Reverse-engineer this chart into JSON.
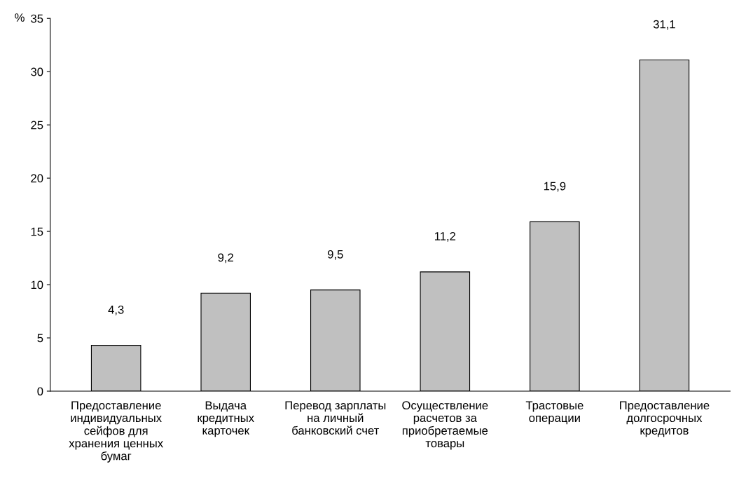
{
  "chart_data": {
    "type": "bar",
    "ylabel": "%",
    "categories": [
      "Предоставление\nиндивидуальных\nсейфов для\nхранения ценных\nбумаг",
      "Выдача\nкредитных\nкарточек",
      "Перевод зарплаты\nна личный\nбанковский счет",
      "Осуществление\nрасчетов за\nприобретаемые\nтовары",
      "Трастовые\nоперации",
      "Предоставление\nдолгосрочных\nкредитов"
    ],
    "values": [
      4.3,
      9.2,
      9.5,
      11.2,
      15.9,
      31.1
    ],
    "value_labels": [
      "4,3",
      "9,2",
      "9,5",
      "11,2",
      "15,9",
      "31,1"
    ],
    "color": "#c0c0c0",
    "ylim": [
      0,
      35
    ],
    "yticks": [
      0,
      5,
      10,
      15,
      20,
      25,
      30,
      35
    ],
    "grid": false,
    "legend": false
  }
}
